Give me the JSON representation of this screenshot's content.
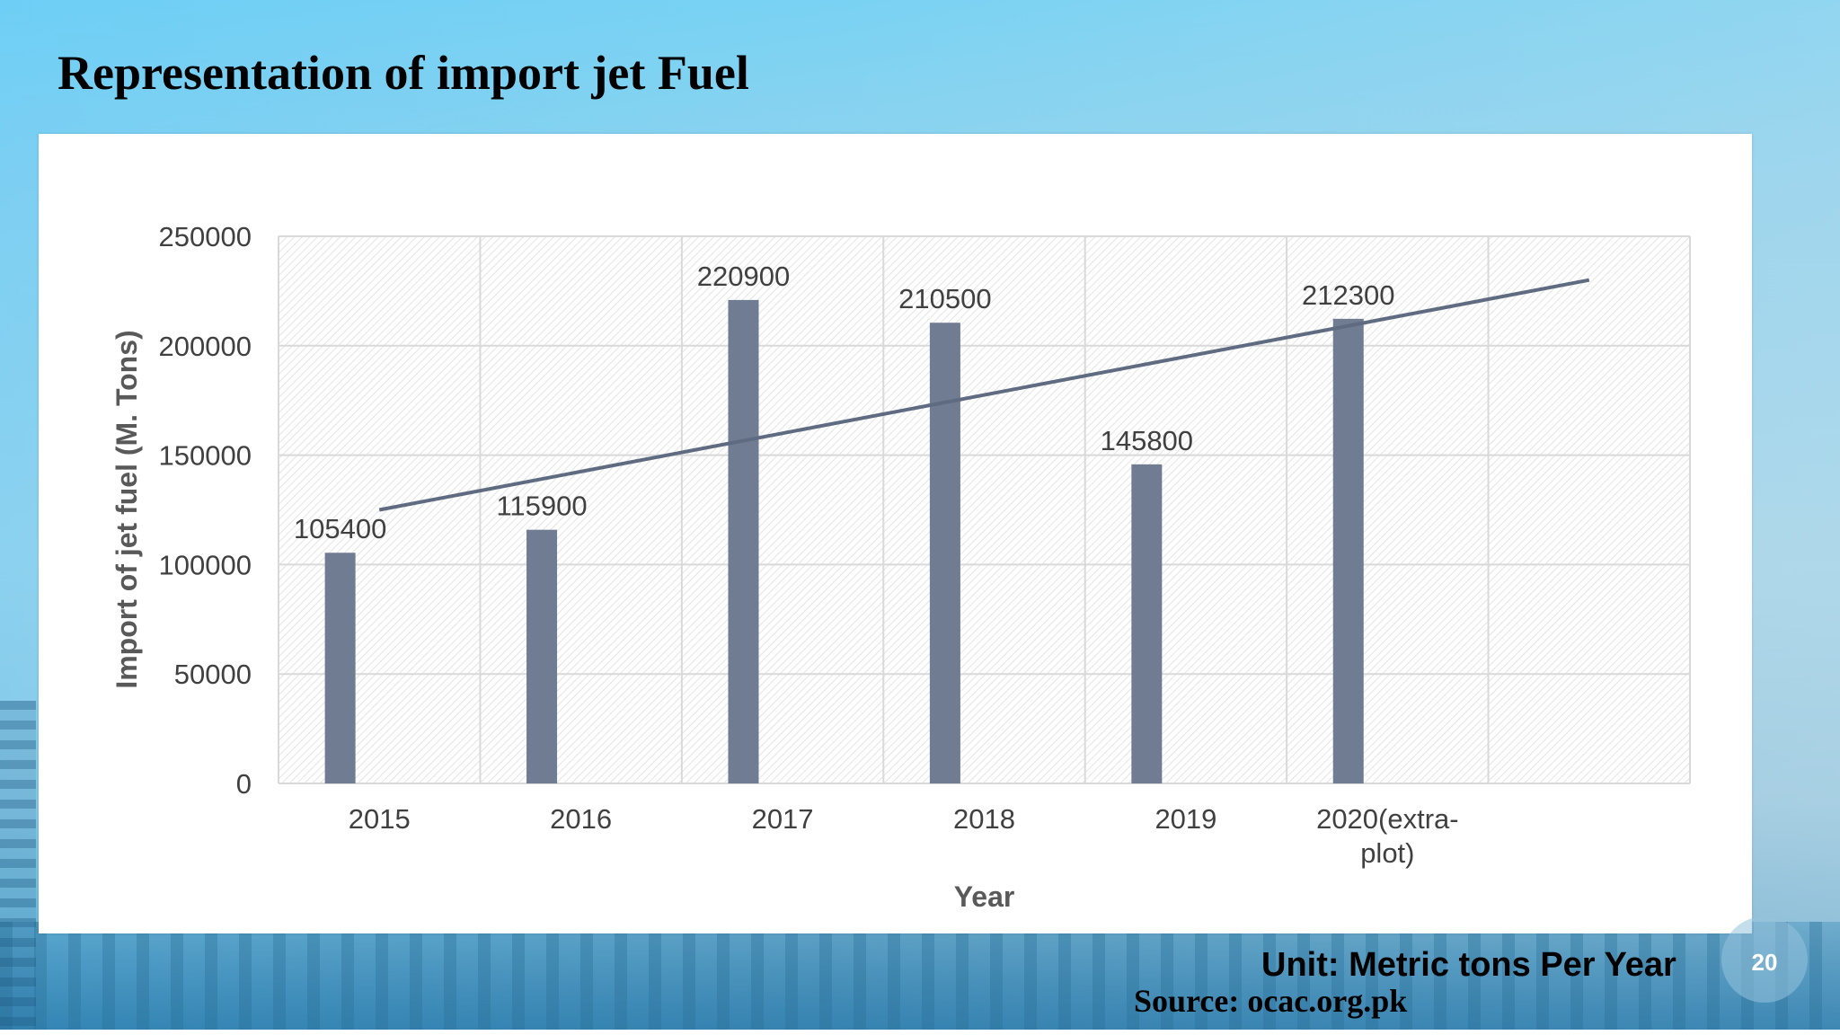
{
  "slide": {
    "title": "Representation of import jet Fuel",
    "unit_note": "Unit: Metric tons Per Year",
    "source": "Source: ocac.org.pk",
    "page_number": "20"
  },
  "colors": {
    "bar": "#707c91",
    "trendline": "#5f6b80",
    "gridline": "#d9d9d9",
    "plot_background_hatch": "#e4e4e4",
    "text": "#404040"
  },
  "chart_data": {
    "type": "bar",
    "title": "",
    "xlabel": "Year",
    "ylabel": "Import of jet fuel (M. Tons)",
    "categories": [
      "2015",
      "2016",
      "2017",
      "2018",
      "2019",
      "2020(extra-plot)"
    ],
    "category_lines": [
      [
        "2015"
      ],
      [
        "2016"
      ],
      [
        "2017"
      ],
      [
        "2018"
      ],
      [
        "2019"
      ],
      [
        "2020(extra-",
        "plot)"
      ]
    ],
    "series": [
      {
        "values": [
          105400,
          115900,
          220900,
          210500,
          145800,
          212300
        ]
      }
    ],
    "data_labels": [
      "105400",
      "115900",
      "220900",
      "210500",
      "145800",
      "212300"
    ],
    "ylim": [
      0,
      250000
    ],
    "yticks": [
      0,
      50000,
      100000,
      150000,
      200000,
      250000
    ],
    "ytick_labels": [
      "0",
      "50000",
      "100000",
      "150000",
      "200000",
      "250000"
    ],
    "category_slots": 7,
    "trendline": {
      "type": "linear",
      "from_category": 0,
      "to_category": 6,
      "start_value": 125000,
      "end_value": 230000
    },
    "grid": true,
    "legend": "none"
  }
}
